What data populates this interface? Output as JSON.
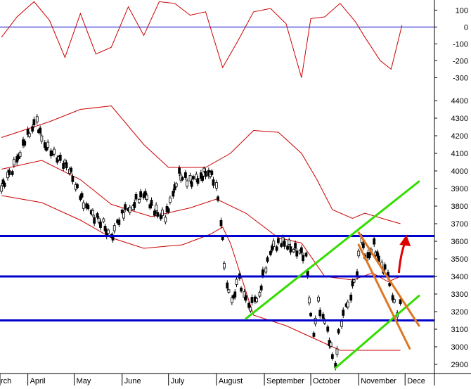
{
  "chart_data": [
    {
      "type": "line",
      "panel": "oscillator",
      "y_ticks": [
        100,
        0,
        -100,
        -200,
        -300
      ],
      "ylim": [
        -340,
        160
      ],
      "reference_line": 0,
      "colors": {
        "line": "#cc0000",
        "reference": "#0000cc"
      },
      "x": [
        "2011-03-15",
        "2011-03-25",
        "2011-04-05",
        "2011-04-15",
        "2011-04-25",
        "2011-05-05",
        "2011-05-15",
        "2011-05-25",
        "2011-06-05",
        "2011-06-15",
        "2011-06-25",
        "2011-07-05",
        "2011-07-15",
        "2011-07-25",
        "2011-08-05",
        "2011-08-15",
        "2011-08-25",
        "2011-09-05",
        "2011-09-15",
        "2011-09-25",
        "2011-10-01",
        "2011-10-10",
        "2011-10-20",
        "2011-10-30",
        "2011-11-05",
        "2011-11-15",
        "2011-11-22",
        "2011-11-29"
      ],
      "values": [
        -60,
        60,
        150,
        40,
        -180,
        80,
        -160,
        -120,
        120,
        -50,
        150,
        140,
        70,
        90,
        -240,
        -80,
        90,
        110,
        20,
        -300,
        50,
        60,
        140,
        30,
        -60,
        -200,
        -250,
        10
      ]
    },
    {
      "type": "candlestick",
      "panel": "price",
      "y_ticks": [
        4400,
        4300,
        4200,
        4100,
        4000,
        3900,
        3800,
        3700,
        3600,
        3500,
        3400,
        3300,
        3200,
        3100,
        3000,
        2900
      ],
      "ylim": [
        2860,
        4440
      ],
      "month_labels": [
        "rch",
        "April",
        "May",
        "June",
        "July",
        "August",
        "September",
        "October",
        "November",
        "Dece"
      ],
      "horizontal_levels": [
        3630,
        3400,
        3150
      ],
      "colors": {
        "candles": "#000000",
        "bands": "#cc0000",
        "levels": "#0000cc",
        "uptrend_channel": "#33dd00",
        "downtrend_channel": "#dd7722",
        "arrow": "#dd0000"
      },
      "close": [
        [
          "2011-03-15",
          3900
        ],
        [
          "2011-03-25",
          4050
        ],
        [
          "2011-04-01",
          4200
        ],
        [
          "2011-04-07",
          4280
        ],
        [
          "2011-04-12",
          4150
        ],
        [
          "2011-04-20",
          4080
        ],
        [
          "2011-04-28",
          4020
        ],
        [
          "2011-05-05",
          3860
        ],
        [
          "2011-05-12",
          3760
        ],
        [
          "2011-05-20",
          3700
        ],
        [
          "2011-05-25",
          3610
        ],
        [
          "2011-06-01",
          3760
        ],
        [
          "2011-06-08",
          3800
        ],
        [
          "2011-06-15",
          3880
        ],
        [
          "2011-06-22",
          3780
        ],
        [
          "2011-06-29",
          3730
        ],
        [
          "2011-07-04",
          3860
        ],
        [
          "2011-07-08",
          3980
        ],
        [
          "2011-07-15",
          3940
        ],
        [
          "2011-07-22",
          3970
        ],
        [
          "2011-07-27",
          4000
        ],
        [
          "2011-08-01",
          3940
        ],
        [
          "2011-08-04",
          3720
        ],
        [
          "2011-08-08",
          3350
        ],
        [
          "2011-08-11",
          3250
        ],
        [
          "2011-08-16",
          3380
        ],
        [
          "2011-08-22",
          3220
        ],
        [
          "2011-08-29",
          3300
        ],
        [
          "2011-09-05",
          3550
        ],
        [
          "2011-09-12",
          3600
        ],
        [
          "2011-09-20",
          3560
        ],
        [
          "2011-09-28",
          3520
        ],
        [
          "2011-10-03",
          3050
        ],
        [
          "2011-10-06",
          3250
        ],
        [
          "2011-10-12",
          3090
        ],
        [
          "2011-10-17",
          2900
        ],
        [
          "2011-10-21",
          3150
        ],
        [
          "2011-10-27",
          3300
        ],
        [
          "2011-10-31",
          3420
        ],
        [
          "2011-11-03",
          3600
        ],
        [
          "2011-11-07",
          3500
        ],
        [
          "2011-11-11",
          3580
        ],
        [
          "2011-11-16",
          3460
        ],
        [
          "2011-11-20",
          3420
        ],
        [
          "2011-11-23",
          3300
        ],
        [
          "2011-11-26",
          3200
        ],
        [
          "2011-11-28",
          3260
        ],
        [
          "2011-11-30",
          3400
        ]
      ],
      "bollinger_upper": [
        [
          "2011-03-15",
          4190
        ],
        [
          "2011-04-15",
          4280
        ],
        [
          "2011-05-05",
          4350
        ],
        [
          "2011-05-25",
          4370
        ],
        [
          "2011-06-15",
          4150
        ],
        [
          "2011-07-01",
          4020
        ],
        [
          "2011-07-25",
          4020
        ],
        [
          "2011-08-10",
          4100
        ],
        [
          "2011-08-25",
          4230
        ],
        [
          "2011-09-10",
          4220
        ],
        [
          "2011-09-25",
          4100
        ],
        [
          "2011-10-05",
          3950
        ],
        [
          "2011-10-15",
          3780
        ],
        [
          "2011-10-28",
          3730
        ],
        [
          "2011-11-05",
          3760
        ],
        [
          "2011-11-20",
          3720
        ],
        [
          "2011-11-28",
          3700
        ]
      ],
      "bollinger_middle": [
        [
          "2011-03-15",
          4010
        ],
        [
          "2011-04-10",
          4060
        ],
        [
          "2011-05-05",
          3950
        ],
        [
          "2011-05-25",
          3810
        ],
        [
          "2011-06-20",
          3740
        ],
        [
          "2011-07-15",
          3790
        ],
        [
          "2011-08-01",
          3840
        ],
        [
          "2011-08-20",
          3760
        ],
        [
          "2011-09-10",
          3620
        ],
        [
          "2011-09-25",
          3590
        ],
        [
          "2011-10-10",
          3400
        ],
        [
          "2011-10-28",
          3380
        ],
        [
          "2011-11-10",
          3420
        ],
        [
          "2011-11-20",
          3370
        ],
        [
          "2011-11-28",
          3400
        ]
      ],
      "bollinger_lower": [
        [
          "2011-03-15",
          3860
        ],
        [
          "2011-04-10",
          3820
        ],
        [
          "2011-05-05",
          3720
        ],
        [
          "2011-05-25",
          3620
        ],
        [
          "2011-06-15",
          3560
        ],
        [
          "2011-07-10",
          3580
        ],
        [
          "2011-07-28",
          3640
        ],
        [
          "2011-08-05",
          3680
        ],
        [
          "2011-08-10",
          3590
        ],
        [
          "2011-08-25",
          3180
        ],
        [
          "2011-09-15",
          3120
        ],
        [
          "2011-10-05",
          3040
        ],
        [
          "2011-10-20",
          2980
        ],
        [
          "2011-11-10",
          2980
        ],
        [
          "2011-11-28",
          2980
        ]
      ],
      "uptrend_channel_upper": [
        [
          "2011-08-20",
          3160
        ],
        [
          "2011-12-10",
          3940
        ]
      ],
      "uptrend_channel_lower": [
        [
          "2011-10-17",
          2880
        ],
        [
          "2011-12-10",
          3290
        ]
      ],
      "downtrend_channel_upper": [
        [
          "2011-11-01",
          3650
        ],
        [
          "2011-12-10",
          3120
        ]
      ],
      "downtrend_channel_lower": [
        [
          "2011-11-01",
          3580
        ],
        [
          "2011-12-04",
          2990
        ]
      ],
      "arrow": [
        [
          "2011-11-27",
          3420
        ],
        [
          "2011-12-01",
          3620
        ]
      ]
    }
  ]
}
